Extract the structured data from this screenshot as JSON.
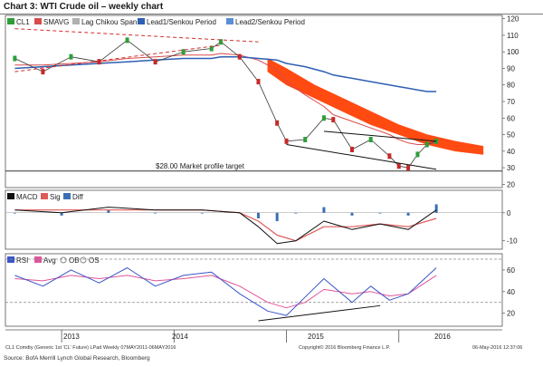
{
  "title": "Chart 3: WTI Crude oil – weekly chart",
  "source": "Source: BofA Merrill Lynch Global Research, Bloomberg",
  "footer": {
    "left": "CL1 Comdty (Generic 1st 'CL' Future) LPad Weekly 07MAY2011-06MAY2016",
    "center": "Copyright© 2016 Bloomberg Finance L.P.",
    "right": "06-May-2016 12:37:06"
  },
  "colors": {
    "price_up": "#2e9e3a",
    "price_down": "#c62828",
    "smavg": "#d84b4b",
    "chikou": "#b0b0b0",
    "lead2": "#2f5fb3",
    "cloud": "#ff4a12",
    "macd": "#111111",
    "signal": "#e05a5a",
    "diff": "#3a6fb5",
    "rsi": "#3a55c8",
    "rsi_avg": "#e0559a",
    "trend": "#d32f2f"
  },
  "chart_data": [
    {
      "type": "line",
      "name": "price",
      "legend": [
        {
          "name": "CL1",
          "color": "#2e9e3a"
        },
        {
          "name": "SMAVG",
          "color": "#d84b4b"
        },
        {
          "name": "Lag Chikou Span",
          "color": "#b0b0b0"
        },
        {
          "name": "Lead1/Senkou Period",
          "color": "#2f5fb3"
        },
        {
          "name": "Lead2/Senkou Period",
          "color": "#5b8fd6"
        }
      ],
      "ylim": [
        18,
        122
      ],
      "yticks": [
        20,
        30,
        40,
        50,
        60,
        70,
        80,
        90,
        100,
        110,
        120
      ],
      "annotation": "$28.00 Market profile target",
      "target_level": 28,
      "x": [
        "2012-08",
        "2012-11",
        "2013-02",
        "2013-05",
        "2013-08",
        "2013-11",
        "2014-02",
        "2014-05",
        "2014-06",
        "2014-08",
        "2014-10",
        "2014-12",
        "2015-01",
        "2015-03",
        "2015-05",
        "2015-06",
        "2015-08",
        "2015-10",
        "2015-12",
        "2016-01",
        "2016-02",
        "2016-03",
        "2016-04",
        "2016-05"
      ],
      "series": [
        {
          "name": "CL1",
          "values": [
            96,
            88,
            97,
            94,
            107,
            94,
            100,
            102,
            106,
            97,
            82,
            57,
            46,
            47,
            60,
            59,
            41,
            47,
            37,
            31,
            30,
            38,
            44,
            46
          ]
        },
        {
          "name": "SMAVG",
          "values": [
            92,
            92,
            93,
            94,
            96,
            97,
            98,
            98,
            99,
            98,
            95,
            89,
            82,
            74,
            67,
            62,
            58,
            54,
            50,
            47,
            45,
            44,
            44,
            45
          ]
        },
        {
          "name": "Lead2/Senkou Period",
          "values": [
            90,
            91,
            92,
            93,
            94,
            95,
            96,
            96,
            97,
            97,
            96,
            95,
            93,
            91,
            88,
            86,
            84,
            82,
            80,
            79,
            78,
            77,
            76,
            76
          ]
        }
      ],
      "cloud": {
        "x": [
          "2014-11",
          "2015-01",
          "2015-04",
          "2015-07",
          "2015-10",
          "2016-01",
          "2016-04",
          "2016-07",
          "2016-10"
        ],
        "upper": [
          96,
          90,
          80,
          72,
          64,
          56,
          50,
          46,
          43
        ],
        "lower": [
          88,
          80,
          72,
          64,
          56,
          50,
          44,
          40,
          38
        ]
      }
    },
    {
      "type": "line",
      "name": "macd",
      "legend": [
        {
          "name": "MACD",
          "color": "#111111"
        },
        {
          "name": "Sig",
          "color": "#e05a5a"
        },
        {
          "name": "Diff",
          "color": "#3a6fb5"
        }
      ],
      "ylim": [
        -13,
        8
      ],
      "yticks": [
        -10,
        0
      ],
      "x": [
        "2012-08",
        "2013-01",
        "2013-06",
        "2013-11",
        "2014-04",
        "2014-08",
        "2014-10",
        "2014-12",
        "2015-02",
        "2015-05",
        "2015-08",
        "2015-11",
        "2016-02",
        "2016-05"
      ],
      "series": [
        {
          "name": "MACD",
          "values": [
            1,
            0,
            2,
            1,
            1,
            0,
            -5,
            -11,
            -10,
            -3,
            -6,
            -4,
            -6,
            1
          ]
        },
        {
          "name": "Sig",
          "values": [
            1,
            1,
            1,
            1,
            1,
            0,
            -3,
            -8,
            -10,
            -5,
            -5,
            -4,
            -5,
            -2
          ]
        }
      ]
    },
    {
      "type": "line",
      "name": "rsi",
      "legend": [
        {
          "name": "RSI",
          "color": "#3a55c8"
        },
        {
          "name": "Avg",
          "color": "#e0559a"
        },
        {
          "name": "OB",
          "color": "#888888"
        },
        {
          "name": "OS",
          "color": "#888888"
        }
      ],
      "ylim": [
        8,
        75
      ],
      "yticks": [
        20,
        40,
        60
      ],
      "ob": 70,
      "os": 30,
      "x": [
        "2012-08",
        "2012-11",
        "2013-02",
        "2013-05",
        "2013-08",
        "2013-11",
        "2014-02",
        "2014-05",
        "2014-08",
        "2014-11",
        "2015-01",
        "2015-03",
        "2015-05",
        "2015-08",
        "2015-10",
        "2015-12",
        "2016-02",
        "2016-05"
      ],
      "series": [
        {
          "name": "RSI",
          "values": [
            55,
            45,
            60,
            48,
            62,
            45,
            55,
            58,
            38,
            22,
            18,
            35,
            52,
            30,
            45,
            32,
            38,
            62
          ]
        },
        {
          "name": "Avg",
          "values": [
            52,
            50,
            55,
            52,
            55,
            50,
            52,
            55,
            45,
            30,
            25,
            30,
            42,
            38,
            40,
            36,
            38,
            55
          ]
        }
      ]
    }
  ],
  "x_axis": {
    "labels": [
      "2013",
      "2014",
      "2015",
      "2016"
    ]
  }
}
